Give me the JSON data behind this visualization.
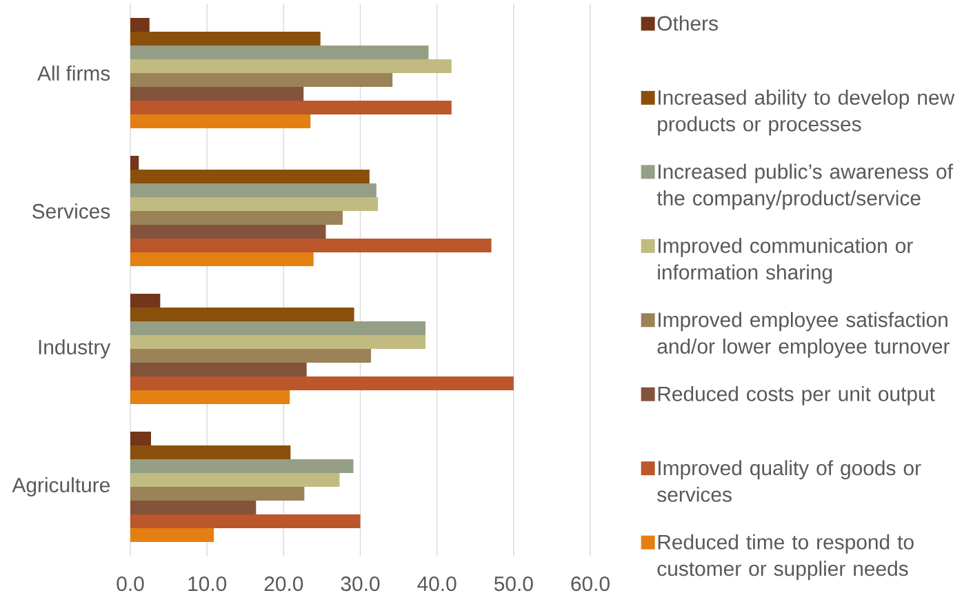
{
  "chart_data": {
    "type": "bar",
    "orientation": "horizontal",
    "categories": [
      "All firms",
      "Services",
      "Industry",
      "Agriculture"
    ],
    "series": [
      {
        "name": "Others",
        "color": "#733619",
        "values": [
          2.5,
          1.1,
          3.9,
          2.7
        ]
      },
      {
        "name": "Increased ability to develop new products or processes",
        "color": "#8b4f0c",
        "values": [
          24.8,
          31.2,
          29.2,
          20.9
        ]
      },
      {
        "name": "Increased public’s awareness of the company/product/service",
        "color": "#949f86",
        "values": [
          38.9,
          32.1,
          38.5,
          29.1
        ]
      },
      {
        "name": "Improved communication or information sharing",
        "color": "#c1bb82",
        "values": [
          41.9,
          32.3,
          38.5,
          27.3
        ]
      },
      {
        "name": "Improved employee satisfaction and/or lower employee turnover",
        "color": "#9b8258",
        "values": [
          34.2,
          27.7,
          31.4,
          22.7
        ]
      },
      {
        "name": "Reduced costs per unit output",
        "color": "#84533c",
        "values": [
          22.6,
          25.5,
          23.0,
          16.4
        ]
      },
      {
        "name": "Improved quality of goods or services",
        "color": "#bc562b",
        "values": [
          41.9,
          47.1,
          50.0,
          30.0
        ]
      },
      {
        "name": "Reduced time to respond to customer or supplier needs",
        "color": "#e48012",
        "values": [
          23.5,
          23.9,
          20.8,
          10.9
        ]
      }
    ],
    "xlim": [
      0,
      60
    ],
    "xticks": [
      {
        "value": 0,
        "label": "0.0"
      },
      {
        "value": 10,
        "label": "10.0"
      },
      {
        "value": 20,
        "label": "20.0"
      },
      {
        "value": 30,
        "label": "30.0"
      },
      {
        "value": 40,
        "label": "40.0"
      },
      {
        "value": 50,
        "label": "50.0"
      },
      {
        "value": 60,
        "label": "60.0"
      }
    ],
    "grid": "x",
    "legend": "right"
  }
}
